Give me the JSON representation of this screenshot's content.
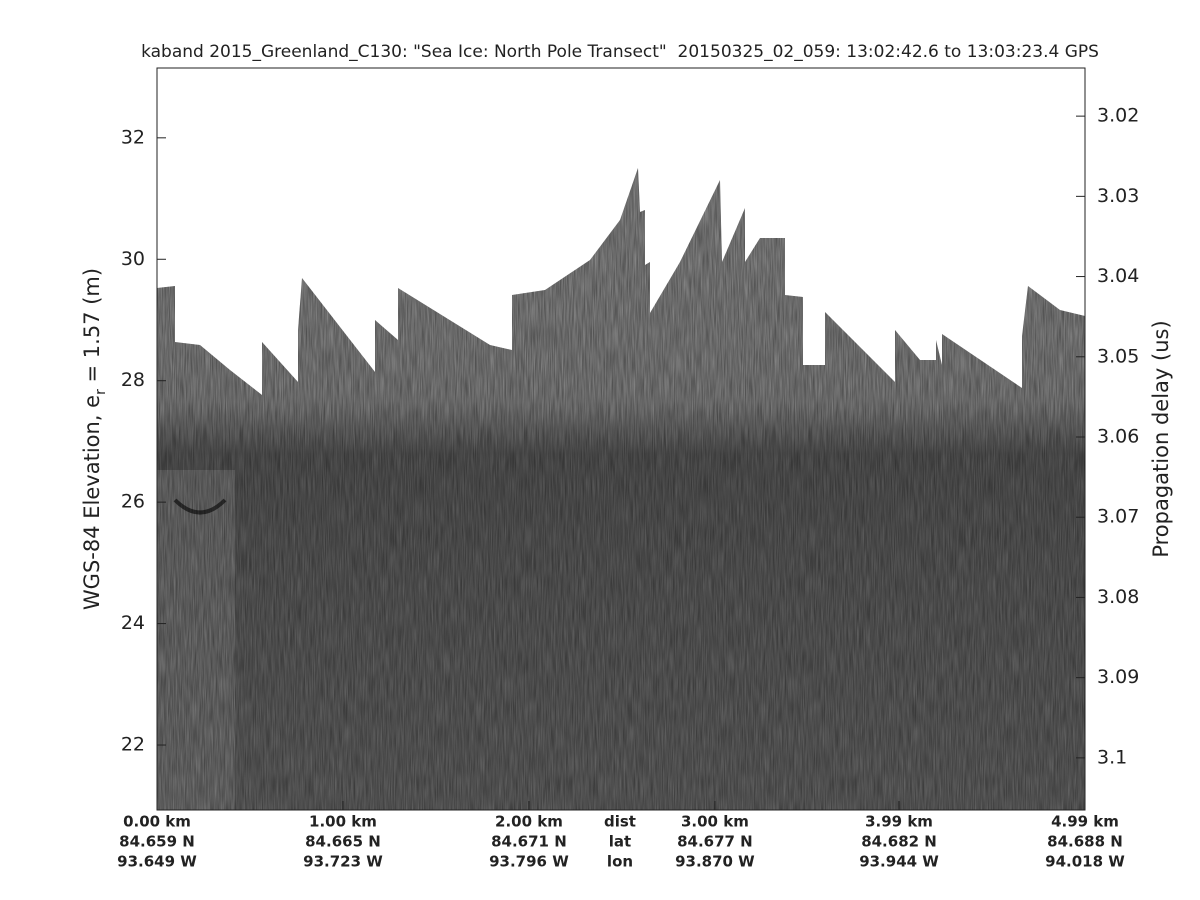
{
  "chart_data": {
    "type": "echogram",
    "title": "kaband 2015_Greenland_C130: \"Sea Ice: North Pole Transect\"  20150325_02_059: 13:02:42.6 to 13:03:23.4 GPS",
    "ylabel": [
      "WGS-84 Elevation, e",
      "r",
      " = 1.57 (m)"
    ],
    "y2label": "Propagation delay (us)",
    "ylim": [
      20.93,
      33.15
    ],
    "yticks": [
      22,
      24,
      26,
      28,
      30,
      32
    ],
    "y2lim": [
      3.014,
      3.1065
    ],
    "y2ticks": [
      3.02,
      3.03,
      3.04,
      3.05,
      3.06,
      3.07,
      3.08,
      3.09,
      3.1
    ],
    "xlim": [
      0,
      4.99
    ],
    "xticks": [
      {
        "value": 0,
        "label": "0.00 km"
      },
      {
        "value": 1,
        "label": "1.00 km"
      },
      {
        "value": 2,
        "label": "2.00 km"
      },
      {
        "value": 3,
        "label": "3.00 km"
      },
      {
        "value": 3.99,
        "label": "3.99 km"
      },
      {
        "value": 4.99,
        "label": "4.99 km"
      }
    ],
    "lat_labels": [
      "84.659 N",
      "84.665 N",
      "84.671 N",
      "84.677 N",
      "84.682 N",
      "84.688 N"
    ],
    "lon_labels": [
      "93.649 W",
      "93.723 W",
      "93.796 W",
      "93.870 W",
      "93.944 W",
      "94.018 W"
    ],
    "row_names": [
      "dist",
      "lat",
      "lon"
    ]
  }
}
